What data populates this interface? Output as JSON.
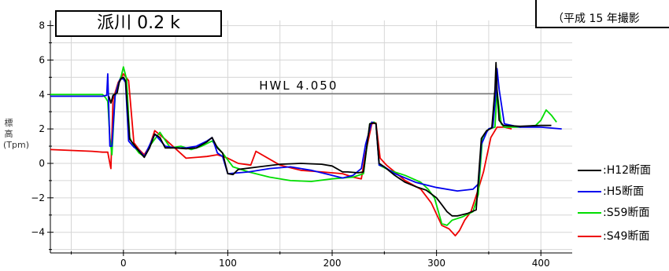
{
  "title": "派川 0.2 k",
  "photo_note": "（平成 15 年撮影",
  "chart_data": {
    "type": "line",
    "title": "派川 0.2 k",
    "ylabel": "標 高 (Tpm)",
    "xlabel": "",
    "xlim": [
      -70,
      430
    ],
    "ylim": [
      -5.2,
      8.3
    ],
    "x_ticks": [
      0,
      100,
      200,
      300,
      400
    ],
    "y_ticks": [
      -4,
      -2,
      0,
      2,
      4,
      6,
      8
    ],
    "x_tick_labels": [
      "0",
      "100",
      "200",
      "300",
      "400"
    ],
    "y_tick_labels": [
      "−4",
      "−2",
      "0",
      "2",
      "4",
      "6",
      "8"
    ],
    "grid": true,
    "legend_position": "right",
    "reference_line": {
      "label": "HWL 4.050",
      "y": 4.05,
      "x_range": [
        -14,
        357
      ]
    },
    "series": [
      {
        "name": ":H12断面",
        "color": "#000000",
        "x": [
          -14,
          -12,
          -10,
          -6,
          -4,
          -2,
          0,
          2,
          6,
          10,
          15,
          20,
          25,
          30,
          35,
          40,
          50,
          60,
          70,
          80,
          85,
          90,
          95,
          100,
          105,
          110,
          130,
          150,
          170,
          190,
          200,
          210,
          215,
          225,
          230,
          236,
          240,
          242,
          245,
          250,
          260,
          270,
          280,
          290,
          300,
          305,
          310,
          315,
          320,
          330,
          338,
          343,
          348,
          353,
          356,
          357,
          358,
          360,
          364,
          380,
          400,
          410
        ],
        "y": [
          3.9,
          3.5,
          3.95,
          4.1,
          4.7,
          4.95,
          5.0,
          4.8,
          1.4,
          1.1,
          0.7,
          0.35,
          0.9,
          1.7,
          1.5,
          0.9,
          0.9,
          0.85,
          0.9,
          1.25,
          1.5,
          0.9,
          0.6,
          -0.6,
          -0.65,
          -0.35,
          -0.2,
          -0.05,
          0.0,
          -0.05,
          -0.15,
          -0.5,
          -0.5,
          -0.55,
          -0.5,
          2.3,
          2.35,
          2.3,
          0.0,
          -0.2,
          -0.7,
          -1.1,
          -1.35,
          -1.55,
          -2.0,
          -2.4,
          -2.8,
          -3.05,
          -3.05,
          -2.9,
          -2.7,
          1.45,
          1.9,
          2.05,
          4.3,
          5.85,
          4.3,
          2.5,
          2.2,
          2.15,
          2.2,
          2.2
        ]
      },
      {
        "name": ":H5断面",
        "color": "#0000ee",
        "x": [
          -70,
          -20,
          -16,
          -15,
          -13,
          -11,
          -8,
          -5,
          -3,
          0,
          2,
          5,
          10,
          15,
          20,
          30,
          40,
          50,
          60,
          70,
          80,
          85,
          90,
          95,
          100,
          120,
          140,
          160,
          180,
          200,
          210,
          220,
          228,
          232,
          238,
          242,
          245,
          250,
          260,
          280,
          300,
          320,
          335,
          340,
          343,
          348,
          350,
          354,
          357,
          358,
          360,
          365,
          380,
          400,
          420
        ],
        "y": [
          3.9,
          3.9,
          3.95,
          5.2,
          1.0,
          1.0,
          3.9,
          4.6,
          4.9,
          4.9,
          4.7,
          1.3,
          0.95,
          0.75,
          0.4,
          1.7,
          1.0,
          0.9,
          0.9,
          1.0,
          1.3,
          1.5,
          0.6,
          0.4,
          -0.6,
          -0.5,
          -0.3,
          -0.2,
          -0.4,
          -0.7,
          -0.85,
          -0.7,
          -0.3,
          1.1,
          2.4,
          2.3,
          -0.1,
          -0.2,
          -0.6,
          -1.1,
          -1.4,
          -1.6,
          -1.5,
          -1.2,
          1.1,
          1.8,
          2.0,
          2.1,
          4.2,
          5.5,
          4.3,
          2.3,
          2.1,
          2.1,
          2.0
        ]
      },
      {
        "name": ":S59断面",
        "color": "#00dd00",
        "x": [
          -70,
          -20,
          -17,
          -15,
          -13,
          -11,
          -8,
          -5,
          -2,
          0,
          3,
          6,
          10,
          15,
          20,
          25,
          35,
          45,
          55,
          65,
          75,
          85,
          95,
          105,
          120,
          140,
          160,
          180,
          200,
          220,
          230,
          236,
          240,
          242,
          245,
          255,
          270,
          285,
          292,
          298,
          305,
          310,
          315,
          325,
          335,
          340,
          344,
          350,
          356,
          358,
          362,
          365,
          380,
          395,
          400,
          405,
          410,
          415
        ],
        "y": [
          4.0,
          4.0,
          3.8,
          3.6,
          1.5,
          0.5,
          3.9,
          4.6,
          5.1,
          5.6,
          4.9,
          1.5,
          1.0,
          0.6,
          0.4,
          1.0,
          1.8,
          0.9,
          1.0,
          0.8,
          1.0,
          1.3,
          0.6,
          -0.2,
          -0.5,
          -0.8,
          -1.0,
          -1.05,
          -0.9,
          -0.8,
          -0.6,
          2.3,
          2.4,
          2.3,
          -0.1,
          -0.4,
          -0.7,
          -1.1,
          -1.5,
          -2.0,
          -3.5,
          -3.6,
          -3.3,
          -3.1,
          -2.8,
          -1.8,
          1.5,
          2.0,
          2.1,
          4.2,
          2.3,
          2.1,
          2.1,
          2.2,
          2.5,
          3.1,
          2.8,
          2.4
        ]
      },
      {
        "name": ":S49断面",
        "color": "#ee0000",
        "x": [
          -70,
          -50,
          -30,
          -20,
          -15,
          -13,
          -12,
          -10,
          -5,
          0,
          5,
          10,
          15,
          20,
          25,
          30,
          40,
          60,
          80,
          90,
          100,
          110,
          122,
          127,
          150,
          170,
          190,
          210,
          220,
          228,
          232,
          238,
          242,
          246,
          252,
          270,
          285,
          295,
          305,
          312,
          318,
          322,
          327,
          333,
          340,
          345,
          352,
          358,
          365,
          372
        ],
        "y": [
          0.8,
          0.75,
          0.7,
          0.65,
          0.65,
          0.0,
          -0.3,
          3.7,
          4.7,
          5.2,
          4.8,
          1.2,
          0.8,
          0.5,
          1.0,
          1.9,
          1.4,
          0.3,
          0.4,
          0.5,
          0.3,
          0.0,
          -0.1,
          0.7,
          -0.1,
          -0.4,
          -0.5,
          -0.6,
          -0.8,
          -0.9,
          0.6,
          2.3,
          2.35,
          0.3,
          -0.1,
          -1.0,
          -1.5,
          -2.3,
          -3.6,
          -3.8,
          -4.2,
          -3.9,
          -3.3,
          -2.8,
          -1.5,
          -0.5,
          1.5,
          2.1,
          2.1,
          2.0
        ]
      }
    ]
  }
}
